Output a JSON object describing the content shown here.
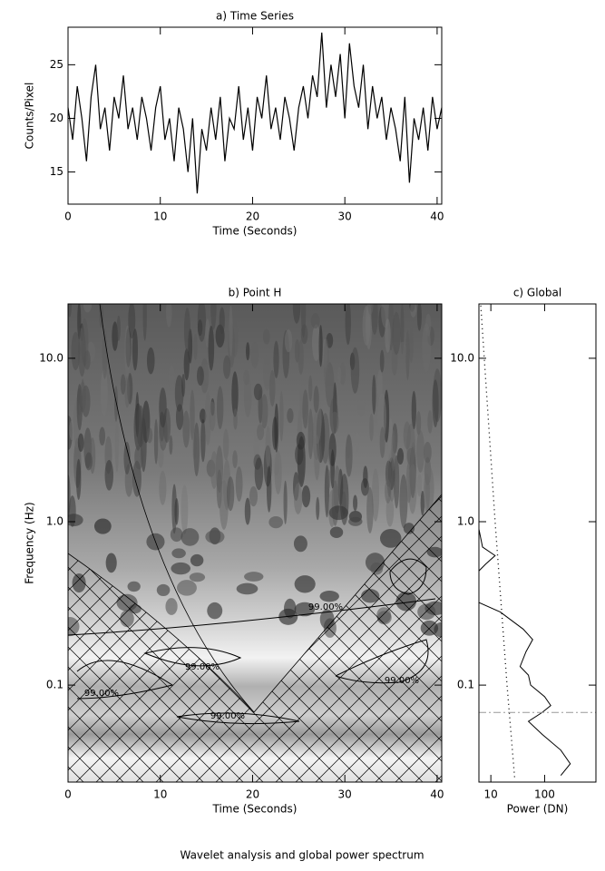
{
  "caption": "Wavelet analysis and global power spectrum",
  "chart_data": [
    {
      "type": "line",
      "title": "a) Time Series",
      "x_label": "Time (Seconds)",
      "y_label": "Counts/Pixel",
      "x": [
        0,
        0.5,
        1,
        1.5,
        2,
        2.5,
        3,
        3.5,
        4,
        4.5,
        5,
        5.5,
        6,
        6.5,
        7,
        7.5,
        8,
        8.5,
        9,
        9.5,
        10,
        10.5,
        11,
        11.5,
        12,
        12.5,
        13,
        13.5,
        14,
        14.5,
        15,
        15.5,
        16,
        16.5,
        17,
        17.5,
        18,
        18.5,
        19,
        19.5,
        20,
        20.5,
        21,
        21.5,
        22,
        22.5,
        23,
        23.5,
        24,
        24.5,
        25,
        25.5,
        26,
        26.5,
        27,
        27.5,
        28,
        28.5,
        29,
        29.5,
        30,
        30.5,
        31,
        31.5,
        32,
        32.5,
        33,
        33.5,
        34,
        34.5,
        35,
        35.5,
        36,
        36.5,
        37,
        37.5,
        38,
        38.5,
        39,
        39.5,
        40,
        40.5
      ],
      "series": [
        {
          "color": "#000000",
          "values": [
            21,
            18,
            23,
            20,
            16,
            22,
            25,
            19,
            21,
            17,
            22,
            20,
            24,
            19,
            21,
            18,
            22,
            20,
            17,
            21,
            23,
            18,
            20,
            16,
            21,
            19,
            15,
            20,
            13,
            19,
            17,
            21,
            18,
            22,
            16,
            20,
            19,
            23,
            18,
            21,
            17,
            22,
            20,
            24,
            19,
            21,
            18,
            22,
            20,
            17,
            21,
            23,
            20,
            24,
            22,
            28,
            21,
            25,
            22,
            26,
            20,
            27,
            23,
            21,
            25,
            19,
            23,
            20,
            22,
            18,
            21,
            19,
            16,
            22,
            14,
            20,
            18,
            21,
            17,
            22,
            19,
            21
          ]
        }
      ],
      "xlim": [
        0,
        40.5
      ],
      "xticks": [
        0,
        10,
        20,
        30,
        40
      ],
      "ylim": [
        12,
        28.5
      ],
      "yticks": [
        15,
        20,
        25
      ]
    },
    {
      "type": "wavelet",
      "title": "b) Point H",
      "x_label": "Time (Seconds)",
      "y_label": "Frequency (Hz)",
      "xlim": [
        0,
        40.5
      ],
      "xticks": [
        0,
        10,
        20,
        30,
        40
      ],
      "ylim": [
        0.0255,
        21.5
      ],
      "log_y": true,
      "yticks": [
        {
          "value": 10,
          "label": "10.0"
        },
        {
          "value": 1,
          "label": "1.0"
        },
        0.1
      ],
      "annotations": [
        "99.00%",
        "99.00%",
        "99.00%",
        "99.00%",
        "99.00%"
      ]
    },
    {
      "type": "profile",
      "title": "c) Global",
      "x_label": "Power (DN)",
      "xlim": [
        6,
        900
      ],
      "log_x": true,
      "xticks": [
        10,
        100
      ],
      "ylim": [
        0.0255,
        21.5
      ],
      "log_y": true,
      "yticks": [
        {
          "value": 10,
          "label": "10.0"
        },
        {
          "value": 1,
          "label": "1.0"
        },
        0.1
      ],
      "reference_frequency": 0.068,
      "series": [
        {
          "color": "#000000",
          "style": "solid",
          "y": [
            0.9,
            0.7,
            0.62,
            0.55,
            0.5,
            0.32,
            0.28,
            0.22,
            0.19,
            0.16,
            0.13,
            0.115,
            0.1,
            0.085,
            0.075,
            0.068,
            0.06,
            0.05,
            0.04,
            0.033,
            0.028
          ],
          "x": [
            6,
            7,
            12,
            8,
            6,
            6,
            15,
            40,
            60,
            45,
            35,
            50,
            55,
            100,
            130,
            90,
            50,
            90,
            200,
            300,
            200
          ]
        },
        {
          "color": "#000000",
          "style": "dotted",
          "y": [
            21,
            1,
            0.1,
            0.026
          ],
          "x": [
            6.5,
            12,
            20,
            28
          ]
        }
      ]
    }
  ]
}
